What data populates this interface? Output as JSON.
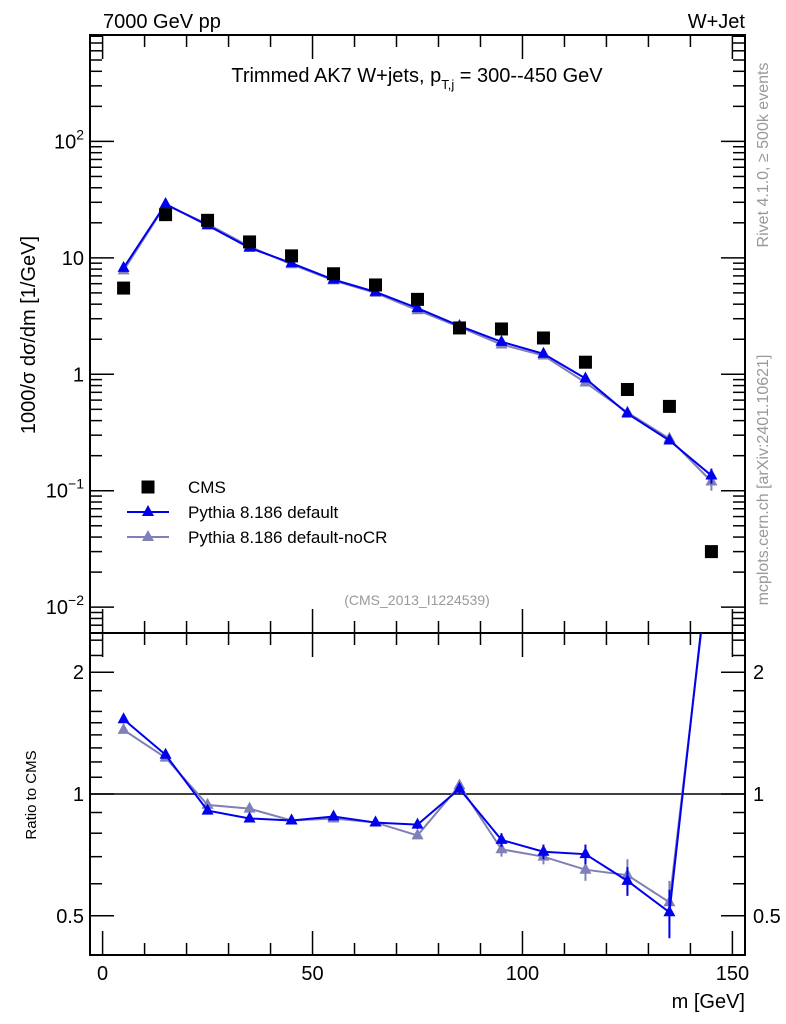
{
  "header": {
    "left": "7000 GeV pp",
    "right": "W+Jet"
  },
  "side_text": {
    "rivet": "Rivet 4.1.0, ≥ 500k events",
    "mcplots": "mcplots.cern.ch [arXiv:2401.10621]"
  },
  "chart_data": [
    {
      "type": "scatter",
      "title": "Trimmed AK7 W+jets, p_T,j = 300--450 GeV",
      "title_parts": {
        "main": "Trimmed AK7 W+jets, p",
        "sub": "T,j",
        "tail": " = 300--450 GeV"
      },
      "analysis_label": "(CMS_2013_I1224539)",
      "ylabel": "1000/σ  dσ/dm [1/GeV]",
      "yscale": "log",
      "ylim": [
        0.006,
        820
      ],
      "xlim": [
        -3,
        153
      ],
      "yticks": [
        {
          "v": 100,
          "base": "10",
          "exp": "2"
        },
        {
          "v": 10,
          "base": "10",
          "exp": ""
        },
        {
          "v": 1,
          "base": "1",
          "exp": ""
        },
        {
          "v": 0.1,
          "base": "10",
          "exp": "−1"
        },
        {
          "v": 0.01,
          "base": "10",
          "exp": "−2"
        }
      ],
      "legend_position": "bottom-left",
      "x": [
        5,
        15,
        25,
        35,
        45,
        55,
        65,
        75,
        85,
        95,
        105,
        115,
        125,
        135,
        145
      ],
      "series": [
        {
          "name": "CMS",
          "marker": "square",
          "color": "#000000",
          "values": [
            5.5,
            23.5,
            21,
            13.7,
            10.4,
            7.3,
            5.85,
            4.4,
            2.5,
            2.45,
            2.05,
            1.27,
            0.74,
            0.53,
            0.03
          ]
        },
        {
          "name": "Pythia 8.186 default",
          "marker": "triangle",
          "color": "#0000ee",
          "values": [
            8.2,
            29,
            19,
            12.2,
            9,
            6.5,
            5.1,
            3.7,
            2.6,
            1.9,
            1.5,
            0.92,
            0.46,
            0.27,
            0.135
          ],
          "err": [
            0,
            0,
            0,
            0,
            0,
            0,
            0,
            0,
            0,
            0,
            0,
            0,
            0.02,
            0.02,
            0.02
          ]
        },
        {
          "name": "Pythia 8.186 default-noCR",
          "marker": "triangle",
          "color": "#8080b8",
          "values": [
            7.8,
            28.5,
            19.5,
            12.5,
            8.8,
            6.4,
            5.0,
            3.55,
            2.55,
            1.8,
            1.45,
            0.85,
            0.47,
            0.28,
            0.12
          ],
          "err": [
            0,
            0,
            0,
            0,
            0,
            0,
            0,
            0,
            0,
            0,
            0,
            0,
            0.02,
            0.03,
            0.02
          ]
        }
      ]
    },
    {
      "type": "line",
      "ylabel": "Ratio to CMS",
      "xlabel": "m [GeV]",
      "yscale": "log",
      "ylim": [
        0.4,
        2.5
      ],
      "xlim": [
        -3,
        153
      ],
      "xticks": [
        0,
        50,
        100,
        150
      ],
      "yticks": [
        "2",
        "1",
        "0.5"
      ],
      "ytick_values": [
        2,
        1,
        0.5
      ],
      "reference": 1,
      "x": [
        5,
        15,
        25,
        35,
        45,
        55,
        65,
        75,
        85,
        95,
        105,
        115,
        125,
        135,
        145
      ],
      "series": [
        {
          "name": "Pythia 8.186 default",
          "color": "#0000ee",
          "values": [
            1.53,
            1.25,
            0.91,
            0.87,
            0.86,
            0.88,
            0.85,
            0.84,
            1.03,
            0.77,
            0.72,
            0.71,
            0.61,
            0.51,
            4.3
          ],
          "err": [
            0,
            0,
            0,
            0,
            0,
            0,
            0,
            0.02,
            0.03,
            0.03,
            0.03,
            0.04,
            0.05,
            0.07,
            0
          ]
        },
        {
          "name": "Pythia 8.186 default-noCR",
          "color": "#8080b8",
          "values": [
            1.44,
            1.23,
            0.94,
            0.92,
            0.86,
            0.87,
            0.85,
            0.79,
            1.05,
            0.73,
            0.7,
            0.65,
            0.63,
            0.54,
            4.1
          ],
          "err": [
            0,
            0,
            0,
            0,
            0,
            0,
            0,
            0,
            0.02,
            0.03,
            0.03,
            0.04,
            0.06,
            0.07,
            0
          ]
        }
      ]
    }
  ]
}
